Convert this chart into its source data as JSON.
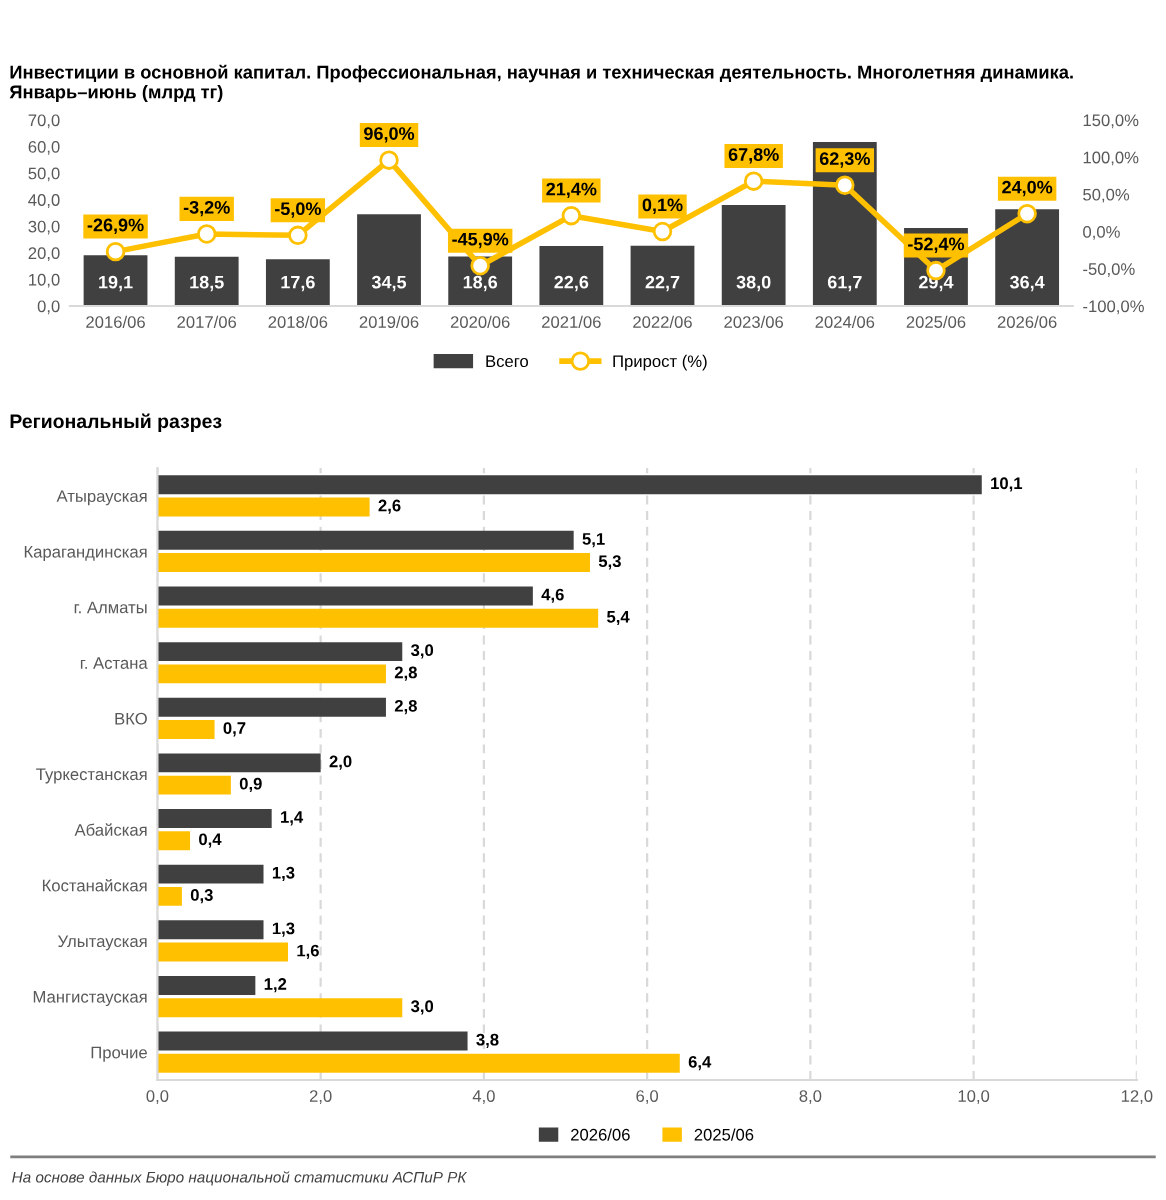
{
  "chart_data": [
    {
      "type": "bar",
      "title": "Инвестиции в основной капитал. Профессиональная, научная и техническая деятельность. Многолетняя динамика.\nЯнварь–июнь (млрд тг)",
      "categories": [
        "2016/06",
        "2017/06",
        "2018/06",
        "2019/06",
        "2020/06",
        "2021/06",
        "2022/06",
        "2023/06",
        "2024/06",
        "2025/06",
        "2026/06"
      ],
      "series": [
        {
          "name": "Всего",
          "type": "bar",
          "color": "#404040",
          "values": [
            19.1,
            18.5,
            17.6,
            34.5,
            18.6,
            22.6,
            22.7,
            38.0,
            61.7,
            29.4,
            36.4
          ],
          "value_labels": [
            "19,1",
            "18,5",
            "17,6",
            "34,5",
            "18,6",
            "22,6",
            "22,7",
            "38,0",
            "61,7",
            "29,4",
            "36,4"
          ]
        },
        {
          "name": "Прирост (%)",
          "type": "line",
          "axis": "y2",
          "color": "#ffc000",
          "marker": "circle",
          "values": [
            -26.9,
            -3.2,
            -5.0,
            96.0,
            -45.9,
            21.4,
            0.1,
            67.8,
            62.3,
            -52.4,
            24.0
          ],
          "value_labels": [
            "-26,9%",
            "-3,2%",
            "-5,0%",
            "96,0%",
            "-45,9%",
            "21,4%",
            "0,1%",
            "67,8%",
            "62,3%",
            "-52,4%",
            "24,0%"
          ]
        }
      ],
      "ylim": [
        0,
        70
      ],
      "yticks": [
        {
          "value": 0,
          "label": "0,0"
        },
        {
          "value": 10,
          "label": "10,0"
        },
        {
          "value": 20,
          "label": "20,0"
        },
        {
          "value": 30,
          "label": "30,0"
        },
        {
          "value": 40,
          "label": "40,0"
        },
        {
          "value": 50,
          "label": "50,0"
        },
        {
          "value": 60,
          "label": "60,0"
        },
        {
          "value": 70,
          "label": "70,0"
        }
      ],
      "y2lim": [
        -100,
        150
      ],
      "y2ticks": [
        {
          "value": -100,
          "label": "-100,0%"
        },
        {
          "value": -50,
          "label": "-50,0%"
        },
        {
          "value": 0,
          "label": "0,0%"
        },
        {
          "value": 50,
          "label": "50,0%"
        },
        {
          "value": 100,
          "label": "100,0%"
        },
        {
          "value": 150,
          "label": "150,0%"
        }
      ],
      "grid": false,
      "legend": "bottom"
    },
    {
      "type": "bar",
      "orientation": "horizontal",
      "title": "Региональный разрез",
      "categories": [
        "Атырауская",
        "Карагандинская",
        "г. Алматы",
        "г. Астана",
        "ВКО",
        "Туркестанская",
        "Абайская",
        "Костанайская",
        "Улытауская",
        "Мангистауская",
        "Прочие"
      ],
      "series": [
        {
          "name": "2026/06",
          "color": "#404040",
          "values": [
            10.1,
            5.1,
            4.6,
            3.0,
            2.8,
            2.0,
            1.4,
            1.3,
            1.3,
            1.2,
            3.8
          ],
          "value_labels": [
            "10,1",
            "5,1",
            "4,6",
            "3,0",
            "2,8",
            "2,0",
            "1,4",
            "1,3",
            "1,3",
            "1,2",
            "3,8"
          ]
        },
        {
          "name": "2025/06",
          "color": "#ffc000",
          "values": [
            2.6,
            5.3,
            5.4,
            2.8,
            0.7,
            0.9,
            0.4,
            0.3,
            1.6,
            3.0,
            6.4
          ],
          "value_labels": [
            "2,6",
            "5,3",
            "5,4",
            "2,8",
            "0,7",
            "0,9",
            "0,4",
            "0,3",
            "1,6",
            "3,0",
            "6,4"
          ]
        }
      ],
      "xlim": [
        0,
        12
      ],
      "xticks": [
        {
          "value": 0,
          "label": "0,0"
        },
        {
          "value": 2,
          "label": "2,0"
        },
        {
          "value": 4,
          "label": "4,0"
        },
        {
          "value": 6,
          "label": "6,0"
        },
        {
          "value": 8,
          "label": "8,0"
        },
        {
          "value": 10,
          "label": "10,0"
        },
        {
          "value": 12,
          "label": "12,0"
        }
      ],
      "grid": "x",
      "legend": "bottom",
      "annotations": [
        "На основе данных Бюро национальной статистики АСПиР РК"
      ]
    }
  ]
}
